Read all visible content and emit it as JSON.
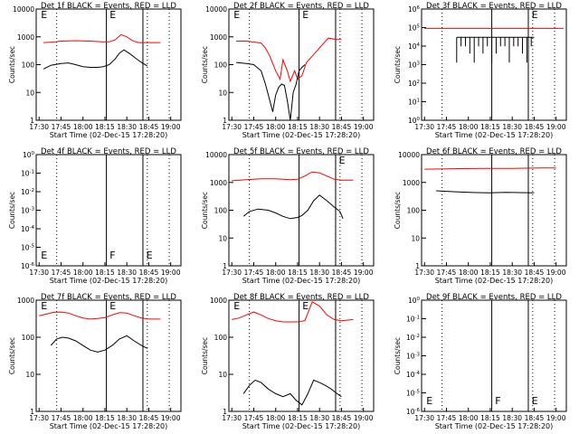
{
  "colors": {
    "events": "#000000",
    "lld": "#ff0000",
    "background": "#ffffff"
  },
  "chart_data": [
    {
      "type": "line",
      "title": "Det 1f BLACK = Events, RED = LLD",
      "xlabel": "Start Time (02-Dec-15 17:28:20)",
      "ylabel": "Counts/sec",
      "x_ticks": [
        "17:30",
        "17:45",
        "18:00",
        "18:15",
        "18:30",
        "18:45",
        "19:00"
      ],
      "y_ticks": [
        "1",
        "10",
        "100",
        "1000",
        "10000"
      ],
      "y_scale": "log",
      "ylim": [
        1,
        10000
      ],
      "markers": [
        "E",
        "E"
      ],
      "series": [
        {
          "color": "red",
          "x": [
            "17:33",
            "17:40",
            "17:45",
            "17:55",
            "18:05",
            "18:13",
            "18:18",
            "18:22",
            "18:26",
            "18:30",
            "18:34",
            "18:38",
            "18:45",
            "18:53"
          ],
          "y": [
            620,
            650,
            700,
            730,
            700,
            660,
            660,
            780,
            1200,
            1000,
            720,
            620,
            620,
            620
          ]
        },
        {
          "color": "black",
          "x": [
            "17:33",
            "17:38",
            "17:45",
            "17:50",
            "17:55",
            "18:00",
            "18:05",
            "18:10",
            "18:14",
            "18:18",
            "18:22",
            "18:25",
            "18:28",
            "18:32",
            "18:36",
            "18:40",
            "18:44"
          ],
          "y": [
            70,
            95,
            110,
            115,
            100,
            85,
            80,
            80,
            85,
            100,
            160,
            260,
            340,
            250,
            170,
            120,
            90
          ]
        }
      ]
    },
    {
      "type": "line",
      "title": "Det 2f BLACK = Events, RED = LLD",
      "xlabel": "Start Time (02-Dec-15 17:28:20)",
      "ylabel": "Counts/sec",
      "x_ticks": [
        "17:30",
        "17:45",
        "18:00",
        "18:15",
        "18:30",
        "18:45",
        "19:00"
      ],
      "y_ticks": [
        "1",
        "10",
        "100",
        "1000",
        "10000"
      ],
      "y_scale": "log",
      "ylim": [
        1,
        10000
      ],
      "markers": [
        "E",
        "E"
      ],
      "series": [
        {
          "color": "red",
          "x": [
            "17:33",
            "17:40",
            "17:45",
            "17:50",
            "17:53",
            "17:56",
            "18:00",
            "18:03",
            "18:05",
            "18:08",
            "18:10",
            "18:13",
            "18:15",
            "18:18",
            "18:21",
            "18:25",
            "18:30",
            "18:36",
            "18:42",
            "18:45"
          ],
          "y": [
            700,
            700,
            650,
            600,
            400,
            200,
            60,
            30,
            150,
            60,
            25,
            60,
            30,
            40,
            120,
            200,
            400,
            900,
            800,
            800
          ]
        },
        {
          "color": "black",
          "x": [
            "17:33",
            "17:40",
            "17:45",
            "17:50",
            "17:53",
            "17:56",
            "17:58",
            "18:00",
            "18:02",
            "18:04",
            "18:06",
            "18:08",
            "18:10",
            "18:12",
            "18:14",
            "18:16",
            "18:18",
            "18:20"
          ],
          "y": [
            120,
            110,
            100,
            60,
            20,
            5,
            2,
            8,
            15,
            20,
            18,
            5,
            1,
            10,
            20,
            60,
            80,
            100
          ]
        }
      ]
    },
    {
      "type": "line",
      "title": "Det 3f BLACK = Events, RED = LLD",
      "xlabel": "Start Time (02-Dec-15 17:28:20)",
      "ylabel": "Counts/sec",
      "x_ticks": [
        "17:30",
        "17:45",
        "18:00",
        "18:15",
        "18:30",
        "18:45",
        "19:00"
      ],
      "y_ticks": [
        "10^0",
        "10^1",
        "10^2",
        "10^3",
        "10^4",
        "10^5",
        "10^6"
      ],
      "y_scale": "log",
      "ylim": [
        1,
        1000000
      ],
      "markers": [
        "E"
      ],
      "series": [
        {
          "color": "red",
          "x": [
            "17:30",
            "19:05"
          ],
          "y": [
            90000,
            90000
          ]
        },
        {
          "color": "black",
          "x": [
            "17:52",
            "18:45"
          ],
          "y": [
            30000,
            30000
          ],
          "note_dips": true
        }
      ]
    },
    {
      "type": "line",
      "title": "Det 4f BLACK = Events, RED = LLD",
      "xlabel": "Start Time (02-Dec-15 17:28:20)",
      "ylabel": "Counts/sec",
      "x_ticks": [
        "17:30",
        "17:45",
        "18:00",
        "18:15",
        "18:30",
        "18:45",
        "19:00"
      ],
      "y_ticks": [
        "10^-6",
        "10^-5",
        "10^-4",
        "10^-3",
        "10^-2",
        "10^-1",
        "10^0"
      ],
      "y_scale": "log",
      "ylim": [
        1e-06,
        1
      ],
      "markers": [
        "E",
        "F",
        "E"
      ],
      "series": []
    },
    {
      "type": "line",
      "title": "Det 5f BLACK = Events, RED = LLD",
      "xlabel": "Start Time (02-Dec-15 17:28:20)",
      "ylabel": "Counts/sec",
      "x_ticks": [
        "17:30",
        "17:45",
        "18:00",
        "18:15",
        "18:30",
        "18:45",
        "19:00"
      ],
      "y_ticks": [
        "1",
        "10",
        "100",
        "1000",
        "10000"
      ],
      "y_scale": "log",
      "ylim": [
        1,
        10000
      ],
      "markers": [
        "E"
      ],
      "series": [
        {
          "color": "red",
          "x": [
            "17:30",
            "17:40",
            "17:50",
            "18:00",
            "18:10",
            "18:15",
            "18:20",
            "18:25",
            "18:30",
            "18:35",
            "18:40",
            "18:45",
            "18:53"
          ],
          "y": [
            1150,
            1250,
            1350,
            1350,
            1250,
            1300,
            1700,
            2400,
            2200,
            1700,
            1300,
            1200,
            1200
          ]
        },
        {
          "color": "black",
          "x": [
            "17:38",
            "17:42",
            "17:48",
            "17:55",
            "18:00",
            "18:05",
            "18:10",
            "18:15",
            "18:18",
            "18:22",
            "18:26",
            "18:30",
            "18:35",
            "18:40",
            "18:44",
            "18:46"
          ],
          "y": [
            60,
            90,
            110,
            100,
            80,
            60,
            50,
            55,
            65,
            100,
            220,
            350,
            220,
            130,
            90,
            50
          ]
        }
      ]
    },
    {
      "type": "line",
      "title": "Det 6f BLACK = Events, RED = LLD",
      "xlabel": "Start Time (02-Dec-15 17:28:20)",
      "ylabel": "Counts/sec",
      "x_ticks": [
        "17:30",
        "17:45",
        "18:00",
        "18:15",
        "18:30",
        "18:45",
        "19:00"
      ],
      "y_ticks": [
        "1",
        "10",
        "100",
        "1000",
        "10000"
      ],
      "y_scale": "log",
      "ylim": [
        1,
        10000
      ],
      "markers": [],
      "series": [
        {
          "color": "red",
          "x": [
            "17:30",
            "17:50",
            "18:10",
            "18:30",
            "18:50",
            "19:00"
          ],
          "y": [
            3000,
            3100,
            3200,
            3200,
            3300,
            3300
          ]
        },
        {
          "color": "black",
          "x": [
            "17:38",
            "17:45",
            "17:55",
            "18:05",
            "18:15",
            "18:25",
            "18:35",
            "18:45"
          ],
          "y": [
            500,
            480,
            450,
            430,
            420,
            440,
            430,
            420
          ]
        }
      ]
    },
    {
      "type": "line",
      "title": "Det 7f BLACK = Events, RED = LLD",
      "xlabel": "Start Time (02-Dec-15 17:28:20)",
      "ylabel": "Counts/sec",
      "x_ticks": [
        "17:30",
        "17:45",
        "18:00",
        "18:15",
        "18:30",
        "18:45",
        "19:00"
      ],
      "y_ticks": [
        "1",
        "10",
        "100",
        "1000"
      ],
      "y_scale": "log",
      "ylim": [
        1,
        1000
      ],
      "markers": [
        "E",
        "E"
      ],
      "series": [
        {
          "color": "red",
          "x": [
            "17:30",
            "17:35",
            "17:40",
            "17:45",
            "17:50",
            "17:55",
            "18:00",
            "18:05",
            "18:10",
            "18:15",
            "18:20",
            "18:25",
            "18:30",
            "18:35",
            "18:40",
            "18:45",
            "18:53"
          ],
          "y": [
            380,
            420,
            470,
            480,
            450,
            380,
            330,
            310,
            320,
            340,
            400,
            460,
            450,
            380,
            330,
            310,
            310
          ]
        },
        {
          "color": "black",
          "x": [
            "17:38",
            "17:42",
            "17:46",
            "17:50",
            "17:55",
            "18:00",
            "18:05",
            "18:10",
            "18:15",
            "18:20",
            "18:25",
            "18:30",
            "18:35",
            "18:40",
            "18:44"
          ],
          "y": [
            60,
            90,
            100,
            95,
            80,
            60,
            45,
            40,
            45,
            60,
            90,
            110,
            80,
            60,
            50
          ]
        }
      ]
    },
    {
      "type": "line",
      "title": "Det 8f BLACK = Events, RED = LLD",
      "xlabel": "Start Time (02-Dec-15 17:28:20)",
      "ylabel": "Counts/sec",
      "x_ticks": [
        "17:30",
        "17:45",
        "18:00",
        "18:15",
        "18:30",
        "18:45",
        "19:00"
      ],
      "y_ticks": [
        "1",
        "10",
        "100",
        "1000"
      ],
      "y_scale": "log",
      "ylim": [
        1,
        1000
      ],
      "markers": [
        "E",
        "E"
      ],
      "series": [
        {
          "color": "red",
          "x": [
            "17:30",
            "17:35",
            "17:40",
            "17:45",
            "17:50",
            "17:55",
            "18:00",
            "18:05",
            "18:10",
            "18:15",
            "18:20",
            "18:25",
            "18:30",
            "18:35",
            "18:40",
            "18:45",
            "18:53"
          ],
          "y": [
            300,
            330,
            400,
            480,
            400,
            320,
            280,
            260,
            260,
            260,
            280,
            900,
            700,
            400,
            300,
            280,
            300
          ]
        },
        {
          "color": "black",
          "x": [
            "17:38",
            "17:42",
            "17:46",
            "17:50",
            "17:55",
            "18:00",
            "18:05",
            "18:10",
            "18:14",
            "18:18",
            "18:22",
            "18:26",
            "18:30",
            "18:34",
            "18:38",
            "18:42",
            "18:45"
          ],
          "y": [
            3,
            5,
            7,
            6,
            4,
            3,
            2.5,
            3,
            2,
            1.5,
            3,
            7,
            6,
            5,
            4,
            3,
            2.5
          ]
        }
      ]
    },
    {
      "type": "line",
      "title": "Det 9f BLACK = Events, RED = LLD",
      "xlabel": "Start Time (02-Dec-15 17:28:20)",
      "ylabel": "Counts/sec",
      "x_ticks": [
        "17:30",
        "17:45",
        "18:00",
        "18:15",
        "18:30",
        "18:45",
        "19:00"
      ],
      "y_ticks": [
        "10^-6",
        "10^-5",
        "10^-4",
        "10^-3",
        "10^-2",
        "10^-1",
        "10^0"
      ],
      "y_scale": "log",
      "ylim": [
        1e-06,
        1
      ],
      "markers": [
        "E",
        "F",
        "E"
      ],
      "series": []
    }
  ]
}
